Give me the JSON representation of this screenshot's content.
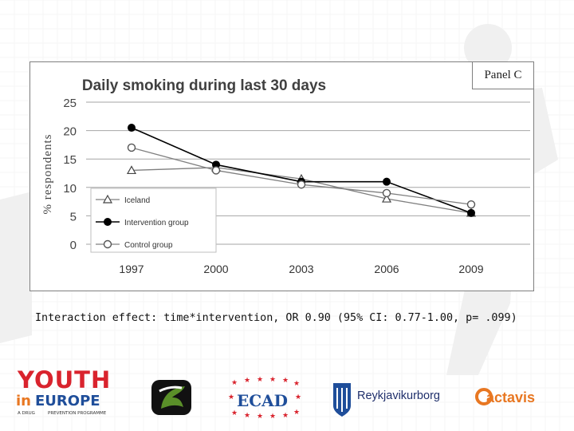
{
  "slide": {
    "caption": "Interaction effect: time*intervention, OR 0.90 (95% CI: 0.77-1.00, p= .099)",
    "panel_label": "Panel C"
  },
  "colors": {
    "background_lines": "#e8e8e8",
    "iceland": "#7f7f7f",
    "intervention": "#000000",
    "control": "#808080",
    "logo_red": "#d9232d",
    "logo_orange": "#e87722",
    "logo_green": "#5a8f29",
    "logo_blue": "#1f4e9a"
  },
  "chart_data": {
    "type": "line",
    "title": "Daily smoking during last 30 days",
    "ylabel": "% respondents",
    "xlabel": "",
    "categories": [
      "1997",
      "2000",
      "2003",
      "2006",
      "2009"
    ],
    "yticks": [
      "25",
      "20",
      "15",
      "10",
      "5",
      "0"
    ],
    "ylim": [
      0,
      25
    ],
    "grid": true,
    "legend_position": "bottom-left",
    "series": [
      {
        "name": "Iceland",
        "marker": "triangle",
        "values": [
          13,
          13.5,
          11.5,
          8,
          5.5
        ]
      },
      {
        "name": "Intervention group",
        "marker": "filled-circle",
        "values": [
          20.5,
          14,
          11,
          11,
          5.5
        ]
      },
      {
        "name": "Control group",
        "marker": "open-circle",
        "values": [
          17,
          13,
          10.5,
          9,
          7
        ]
      }
    ]
  },
  "logos": {
    "youth_in_europe": {
      "line1": "YOUTH",
      "line2_a": "in",
      "line2_b": "EUROPE",
      "tagline_a": "A DRUG",
      "tagline_b": "PREVENTION PROGRAMME"
    },
    "ecad": {
      "text": "ECAD"
    },
    "reykjavik": {
      "text": "Reykjavikurborg"
    },
    "actavis": {
      "text": "actavis"
    }
  }
}
